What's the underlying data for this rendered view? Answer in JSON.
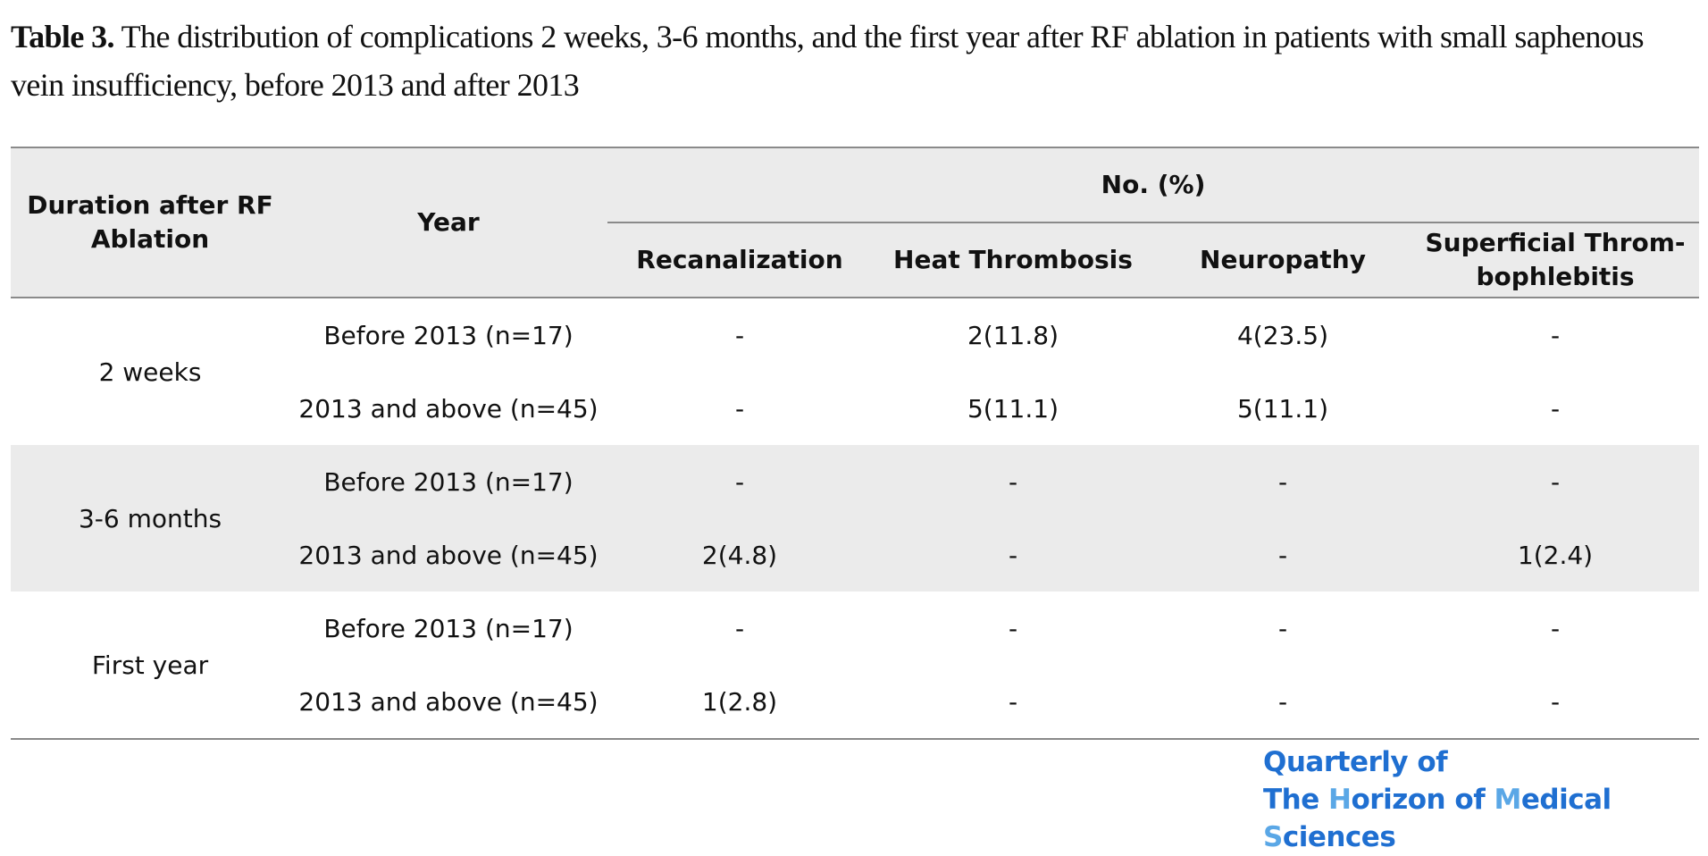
{
  "caption": {
    "label": "Table 3.",
    "text": " The distribution of complications 2 weeks, 3-6 months, and the first year after RF ablation in patients with small saphenous vein insufficiency, before 2013 and after 2013"
  },
  "table": {
    "headers": {
      "duration": "Duration after RF Ablation",
      "year": "Year",
      "group": "No. (%)",
      "recanalization": "Recanalization",
      "heat_thrombosis": "Heat Thrombosis",
      "neuropathy": "Neuropathy",
      "superficial": "Superficial Throm-bophlebitis"
    },
    "groups": [
      {
        "duration": "2 weeks",
        "rows": [
          {
            "year": "Before 2013 (n=17)",
            "recanalization": "-",
            "heat_thrombosis": "2(11.8)",
            "neuropathy": "4(23.5)",
            "superficial": "-"
          },
          {
            "year": "2013 and above (n=45)",
            "recanalization": "-",
            "heat_thrombosis": "5(11.1)",
            "neuropathy": "5(11.1)",
            "superficial": "-"
          }
        ]
      },
      {
        "duration": "3-6 months",
        "rows": [
          {
            "year": "Before 2013 (n=17)",
            "recanalization": "-",
            "heat_thrombosis": "-",
            "neuropathy": "-",
            "superficial": "-"
          },
          {
            "year": "2013 and above (n=45)",
            "recanalization": "2(4.8)",
            "heat_thrombosis": "-",
            "neuropathy": "-",
            "superficial": "1(2.4)"
          }
        ]
      },
      {
        "duration": "First year",
        "rows": [
          {
            "year": "Before 2013 (n=17)",
            "recanalization": "-",
            "heat_thrombosis": "-",
            "neuropathy": "-",
            "superficial": "-"
          },
          {
            "year": "2013 and above (n=45)",
            "recanalization": "1(2.8)",
            "heat_thrombosis": "-",
            "neuropathy": "-",
            "superficial": "-"
          }
        ]
      }
    ]
  },
  "logo": {
    "line1": "Quarterly of",
    "line2_parts": [
      "The ",
      "H",
      "orizon of ",
      "M",
      "edical ",
      "S",
      "ciences"
    ]
  },
  "colors": {
    "logo_dark": "#1f6fd1",
    "logo_light": "#5aa7e6",
    "shade": "#ebebeb",
    "rule": "#8a8a8a"
  }
}
